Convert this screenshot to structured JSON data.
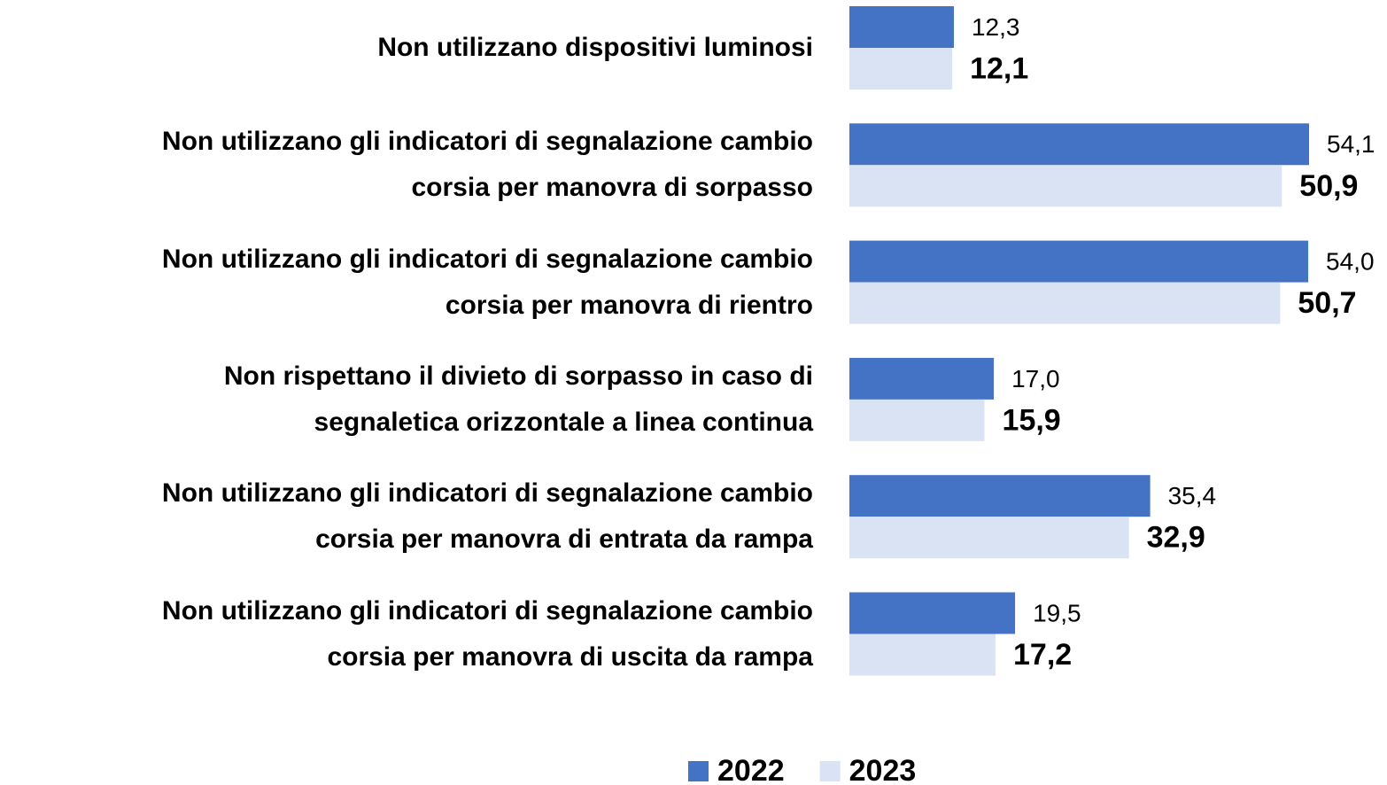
{
  "chart_data": {
    "type": "bar",
    "orientation": "horizontal",
    "categories": [
      "Non utilizzano dispositivi luminosi",
      "Non utilizzano gli indicatori di segnalazione cambio\ncorsia per manovra di sorpasso",
      "Non utilizzano gli indicatori di segnalazione cambio\ncorsia per manovra di rientro",
      "Non rispettano il divieto di sorpasso in caso di\nsegnaletica orizzontale a linea continua",
      "Non utilizzano gli indicatori di segnalazione cambio\ncorsia per manovra di entrata da rampa",
      "Non utilizzano gli indicatori di segnalazione cambio\ncorsia per manovra di uscita da rampa"
    ],
    "series": [
      {
        "name": "2022",
        "color": "#4472c4",
        "values": [
          12.3,
          54.1,
          54.0,
          17.0,
          35.4,
          19.5
        ],
        "value_labels": [
          "12,3",
          "54,1",
          "54,0",
          "17,0",
          "35,4",
          "19,5"
        ]
      },
      {
        "name": "2023",
        "color": "#dae3f3",
        "values": [
          12.1,
          50.9,
          50.7,
          15.9,
          32.9,
          17.2
        ],
        "value_labels": [
          "12,1",
          "50,9",
          "50,7",
          "15,9",
          "32,9",
          "17,2"
        ]
      }
    ],
    "legend": "bottom"
  }
}
